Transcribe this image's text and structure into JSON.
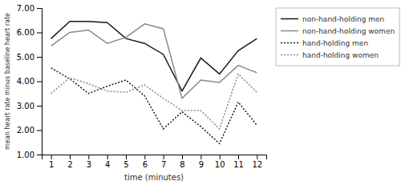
{
  "chart_data": {
    "type": "line",
    "xlabel": "time (minutes)",
    "ylabel": "mean heart rate minus baseline heart rate",
    "x": [
      1,
      2,
      3,
      4,
      5,
      6,
      7,
      8,
      9,
      10,
      11,
      12
    ],
    "xlim": [
      0.5,
      12.5
    ],
    "xticks": [
      1,
      2,
      3,
      4,
      5,
      6,
      7,
      8,
      9,
      10,
      11,
      12
    ],
    "ylim": [
      1.0,
      7.0
    ],
    "yticks": [
      {
        "value": 1.0,
        "label": "1.00"
      },
      {
        "value": 2.0,
        "label": "2.00"
      },
      {
        "value": 3.0,
        "label": "3.00"
      },
      {
        "value": 4.0,
        "label": "4.00"
      },
      {
        "value": 5.0,
        "label": "5.00"
      },
      {
        "value": 6.0,
        "label": "6.00"
      },
      {
        "value": 7.0,
        "label": "7.00"
      }
    ],
    "grid": false,
    "legend": "right",
    "series": [
      {
        "name": "non-hand-holding men",
        "color": "#1a1a1a",
        "line_style": "solid",
        "values": [
          5.75,
          6.45,
          6.45,
          6.4,
          5.75,
          5.55,
          5.1,
          3.6,
          4.95,
          4.3,
          5.25,
          5.75
        ]
      },
      {
        "name": "non-hand-holding women",
        "color": "#888888",
        "line_style": "solid",
        "values": [
          5.45,
          6.0,
          6.1,
          5.55,
          5.8,
          6.35,
          6.15,
          3.3,
          4.05,
          3.95,
          4.65,
          4.35
        ]
      },
      {
        "name": "hand-holding men",
        "color": "#1a1a1a",
        "line_style": "dotted",
        "values": [
          4.55,
          4.1,
          3.5,
          3.8,
          4.05,
          3.4,
          2.05,
          2.75,
          2.15,
          1.45,
          3.15,
          2.2
        ]
      },
      {
        "name": "hand-holding women",
        "color": "#888888",
        "line_style": "dotted",
        "values": [
          3.5,
          4.15,
          3.9,
          3.6,
          3.55,
          3.85,
          3.3,
          2.8,
          2.8,
          2.05,
          4.3,
          3.55
        ]
      }
    ]
  }
}
